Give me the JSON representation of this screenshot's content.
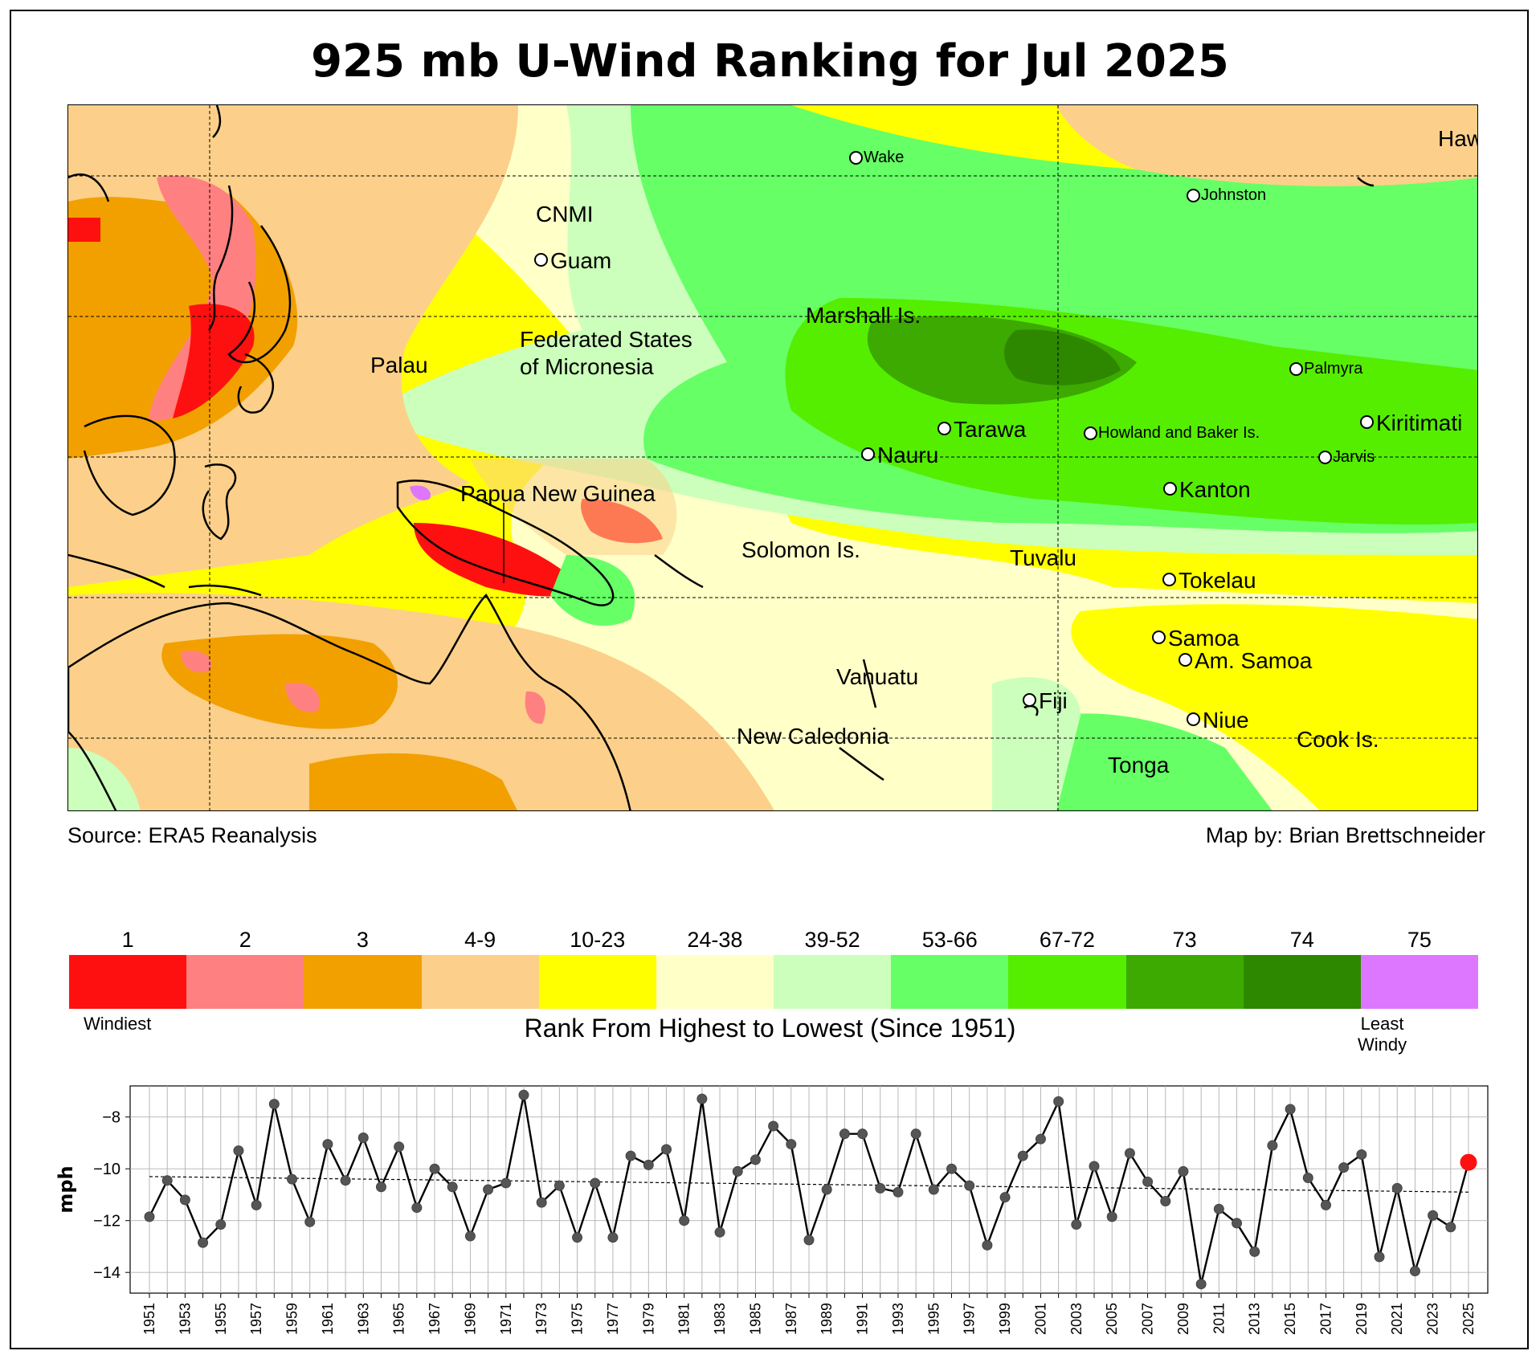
{
  "title": "925 mb U-Wind Ranking for Jul 2025",
  "source_label": "Source: ERA5 Reanalysis",
  "credit_label": "Map by: Brian Brettschneider",
  "map": {
    "places": [
      {
        "name": "Hawaii",
        "dot": false,
        "size": "lg"
      },
      {
        "name": "Wake",
        "dot": true,
        "size": "sm"
      },
      {
        "name": "Johnston",
        "dot": true,
        "size": "sm"
      },
      {
        "name": "CNMI",
        "dot": false,
        "size": "lg"
      },
      {
        "name": "Guam",
        "dot": true,
        "size": "lg"
      },
      {
        "name": "Marshall Is.",
        "dot": false,
        "size": "lg"
      },
      {
        "name": "Federated States",
        "dot": false,
        "size": "lg"
      },
      {
        "name": "of Micronesia",
        "dot": false,
        "size": "lg"
      },
      {
        "name": "Palau",
        "dot": false,
        "size": "lg"
      },
      {
        "name": "Palmyra",
        "dot": true,
        "size": "sm"
      },
      {
        "name": "Tarawa",
        "dot": true,
        "size": "lg"
      },
      {
        "name": "Howland and Baker Is.",
        "dot": true,
        "size": "sm"
      },
      {
        "name": "Kiritimati",
        "dot": true,
        "size": "lg"
      },
      {
        "name": "Nauru",
        "dot": true,
        "size": "lg"
      },
      {
        "name": "Jarvis",
        "dot": true,
        "size": "sm"
      },
      {
        "name": "Papua New Guinea",
        "dot": false,
        "size": "lg"
      },
      {
        "name": "Kanton",
        "dot": true,
        "size": "lg"
      },
      {
        "name": "Solomon Is.",
        "dot": false,
        "size": "lg"
      },
      {
        "name": "Tuvalu",
        "dot": false,
        "size": "lg"
      },
      {
        "name": "Tokelau",
        "dot": true,
        "size": "lg"
      },
      {
        "name": "Samoa",
        "dot": true,
        "size": "lg"
      },
      {
        "name": "Am. Samoa",
        "dot": true,
        "size": "lg"
      },
      {
        "name": "Vanuatu",
        "dot": false,
        "size": "lg"
      },
      {
        "name": "Fiji",
        "dot": true,
        "size": "lg"
      },
      {
        "name": "Niue",
        "dot": true,
        "size": "lg"
      },
      {
        "name": "New Caledonia",
        "dot": false,
        "size": "lg"
      },
      {
        "name": "Cook Is.",
        "dot": false,
        "size": "lg"
      },
      {
        "name": "Tonga",
        "dot": false,
        "size": "lg"
      }
    ]
  },
  "legend": {
    "title": "Rank From Highest to Lowest (Since 1951)",
    "low_note": "Windiest",
    "high_note_1": "Least",
    "high_note_2": "Windy",
    "bins": [
      {
        "label": "1",
        "color": "#ff1010"
      },
      {
        "label": "2",
        "color": "#ff8080"
      },
      {
        "label": "3",
        "color": "#f2a000"
      },
      {
        "label": "4-9",
        "color": "#fcd08a"
      },
      {
        "label": "10-23",
        "color": "#ffff00"
      },
      {
        "label": "24-38",
        "color": "#ffffc8"
      },
      {
        "label": "39-52",
        "color": "#ccffbb"
      },
      {
        "label": "53-66",
        "color": "#66ff66"
      },
      {
        "label": "67-72",
        "color": "#55ee00"
      },
      {
        "label": "73",
        "color": "#3caa00"
      },
      {
        "label": "74",
        "color": "#2d8800"
      },
      {
        "label": "75",
        "color": "#dd77ff"
      }
    ]
  },
  "chart_data": {
    "type": "line",
    "ylabel": "mph",
    "ylim": [
      -14.8,
      -6.8
    ],
    "yticks": [
      -14,
      -12,
      -10,
      -8
    ],
    "xticks_step": 2,
    "trend_start": -10.3,
    "trend_end": -10.9,
    "highlight_year": 2025,
    "highlight_color": "#ff1010",
    "x": [
      1951,
      1952,
      1953,
      1954,
      1955,
      1956,
      1957,
      1958,
      1959,
      1960,
      1961,
      1962,
      1963,
      1964,
      1965,
      1966,
      1967,
      1968,
      1969,
      1970,
      1971,
      1972,
      1973,
      1974,
      1975,
      1976,
      1977,
      1978,
      1979,
      1980,
      1981,
      1982,
      1983,
      1984,
      1985,
      1986,
      1987,
      1988,
      1989,
      1990,
      1991,
      1992,
      1993,
      1994,
      1995,
      1996,
      1997,
      1998,
      1999,
      2000,
      2001,
      2002,
      2003,
      2004,
      2005,
      2006,
      2007,
      2008,
      2009,
      2010,
      2011,
      2012,
      2013,
      2014,
      2015,
      2016,
      2017,
      2018,
      2019,
      2020,
      2021,
      2022,
      2023,
      2024,
      2025
    ],
    "values": [
      -11.85,
      -10.45,
      -11.2,
      -12.85,
      -12.15,
      -9.3,
      -11.4,
      -7.5,
      -10.4,
      -12.05,
      -9.05,
      -10.45,
      -8.8,
      -10.7,
      -9.15,
      -11.5,
      -10.0,
      -10.7,
      -12.6,
      -10.8,
      -10.55,
      -7.15,
      -11.3,
      -10.65,
      -12.65,
      -10.55,
      -12.65,
      -9.5,
      -9.85,
      -9.25,
      -12.0,
      -7.3,
      -12.45,
      -10.1,
      -9.65,
      -8.35,
      -9.05,
      -12.75,
      -10.8,
      -8.65,
      -8.65,
      -10.75,
      -10.9,
      -8.65,
      -10.8,
      -10.0,
      -10.65,
      -12.95,
      -11.1,
      -9.5,
      -8.85,
      -7.4,
      -12.15,
      -9.9,
      -11.85,
      -9.4,
      -10.5,
      -11.25,
      -10.1,
      -14.45,
      -11.55,
      -12.1,
      -13.2,
      -9.1,
      -7.7,
      -10.35,
      -11.4,
      -9.95,
      -9.45,
      -13.4,
      -10.75,
      -13.95,
      -11.8,
      -12.25,
      -9.75
    ]
  }
}
